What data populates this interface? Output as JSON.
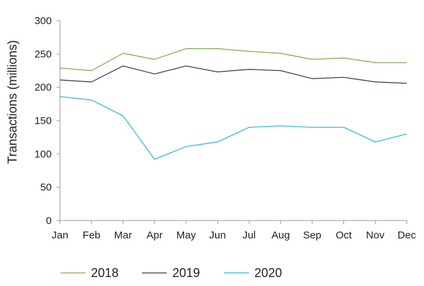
{
  "chart_data": {
    "type": "line",
    "title": "",
    "xlabel": "",
    "ylabel": "Transactions (millions)",
    "ylim": [
      0,
      300
    ],
    "yticks": [
      0,
      50,
      100,
      150,
      200,
      250,
      300
    ],
    "categories": [
      "Jan",
      "Feb",
      "Mar",
      "Apr",
      "May",
      "Jun",
      "Jul",
      "Aug",
      "Sep",
      "Oct",
      "Nov",
      "Dec"
    ],
    "series": [
      {
        "name": "2018",
        "color": "#7daa4a",
        "values": [
          229,
          225,
          251,
          242,
          258,
          258,
          254,
          251,
          242,
          244,
          237,
          237
        ]
      },
      {
        "name": "2019",
        "color": "#2b3a4b",
        "values": [
          211,
          208,
          232,
          220,
          232,
          223,
          227,
          225,
          213,
          215,
          208,
          206
        ]
      },
      {
        "name": "2020",
        "color": "#2bb3d1",
        "values": [
          186,
          181,
          157,
          92,
          111,
          118,
          140,
          142,
          140,
          140,
          118,
          130
        ]
      }
    ],
    "grid": false,
    "legend_position": "bottom"
  }
}
